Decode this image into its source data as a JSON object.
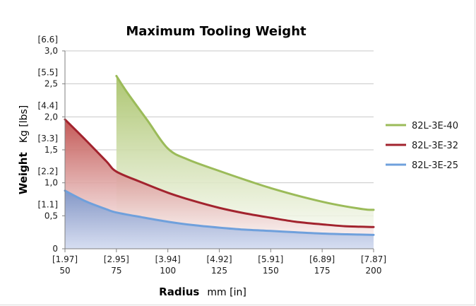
{
  "chart_data": {
    "type": "area",
    "title": "Maximum Tooling Weight",
    "xlabel_bold": "Radius",
    "xlabel_unit": "mm [in]",
    "ylabel_bold": "Weight",
    "ylabel_unit": "Kg [lbs]",
    "xlim": [
      50,
      200
    ],
    "ylim": [
      0,
      3.0
    ],
    "x_ticks": [
      50,
      75,
      100,
      125,
      150,
      175,
      200
    ],
    "x_tick_labels": [
      "50",
      "75",
      "100",
      "125",
      "150",
      "175",
      "200"
    ],
    "x_tick_labels_in": [
      "[1.97]",
      "[2.95]",
      "[3.94]",
      "[4.92]",
      "[5.91]",
      "[6.89]",
      "[7.87]"
    ],
    "y_ticks": [
      0,
      0.5,
      1.0,
      1.5,
      2.0,
      2.5,
      3.0
    ],
    "y_tick_labels": [
      "0",
      "0,5",
      "1,0",
      "1,5",
      "2,0",
      "2,5",
      "3,0"
    ],
    "y_tick_labels_lbs": [
      "",
      "[1.1]",
      "[2.2]",
      "[3.3]",
      "[4.4]",
      "[5.5]",
      "[6.6]"
    ],
    "grid": "horizontal",
    "legend_position": "right",
    "series": [
      {
        "name": "82L-3E-40",
        "color": "#9bbb59",
        "fill_top": "#a9c36a",
        "fill_bottom": "#ffffff",
        "x": [
          75,
          80,
          90,
          100,
          110,
          125,
          140,
          150,
          165,
          180,
          195,
          200
        ],
        "y": [
          2.62,
          2.38,
          1.95,
          1.52,
          1.35,
          1.18,
          1.02,
          0.92,
          0.79,
          0.68,
          0.6,
          0.59
        ],
        "start_from_zero": true
      },
      {
        "name": "82L-3E-32",
        "color": "#a2232e",
        "fill_top": "#c0504d",
        "fill_bottom": "#ffffff",
        "x": [
          50,
          60,
          70,
          75,
          87,
          100,
          112,
          125,
          137,
          150,
          162,
          175,
          187,
          200
        ],
        "y": [
          1.96,
          1.65,
          1.33,
          1.17,
          1.01,
          0.85,
          0.73,
          0.62,
          0.54,
          0.47,
          0.41,
          0.37,
          0.34,
          0.33
        ]
      },
      {
        "name": "82L-3E-25",
        "color": "#6fa0dc",
        "fill_top": "#7e96c8",
        "fill_bottom": "#cfd8ef",
        "x": [
          50,
          60,
          70,
          75,
          87,
          100,
          112,
          125,
          137,
          150,
          162,
          175,
          187,
          200
        ],
        "y": [
          0.88,
          0.72,
          0.6,
          0.55,
          0.48,
          0.41,
          0.36,
          0.32,
          0.29,
          0.27,
          0.25,
          0.23,
          0.22,
          0.21
        ]
      }
    ]
  }
}
